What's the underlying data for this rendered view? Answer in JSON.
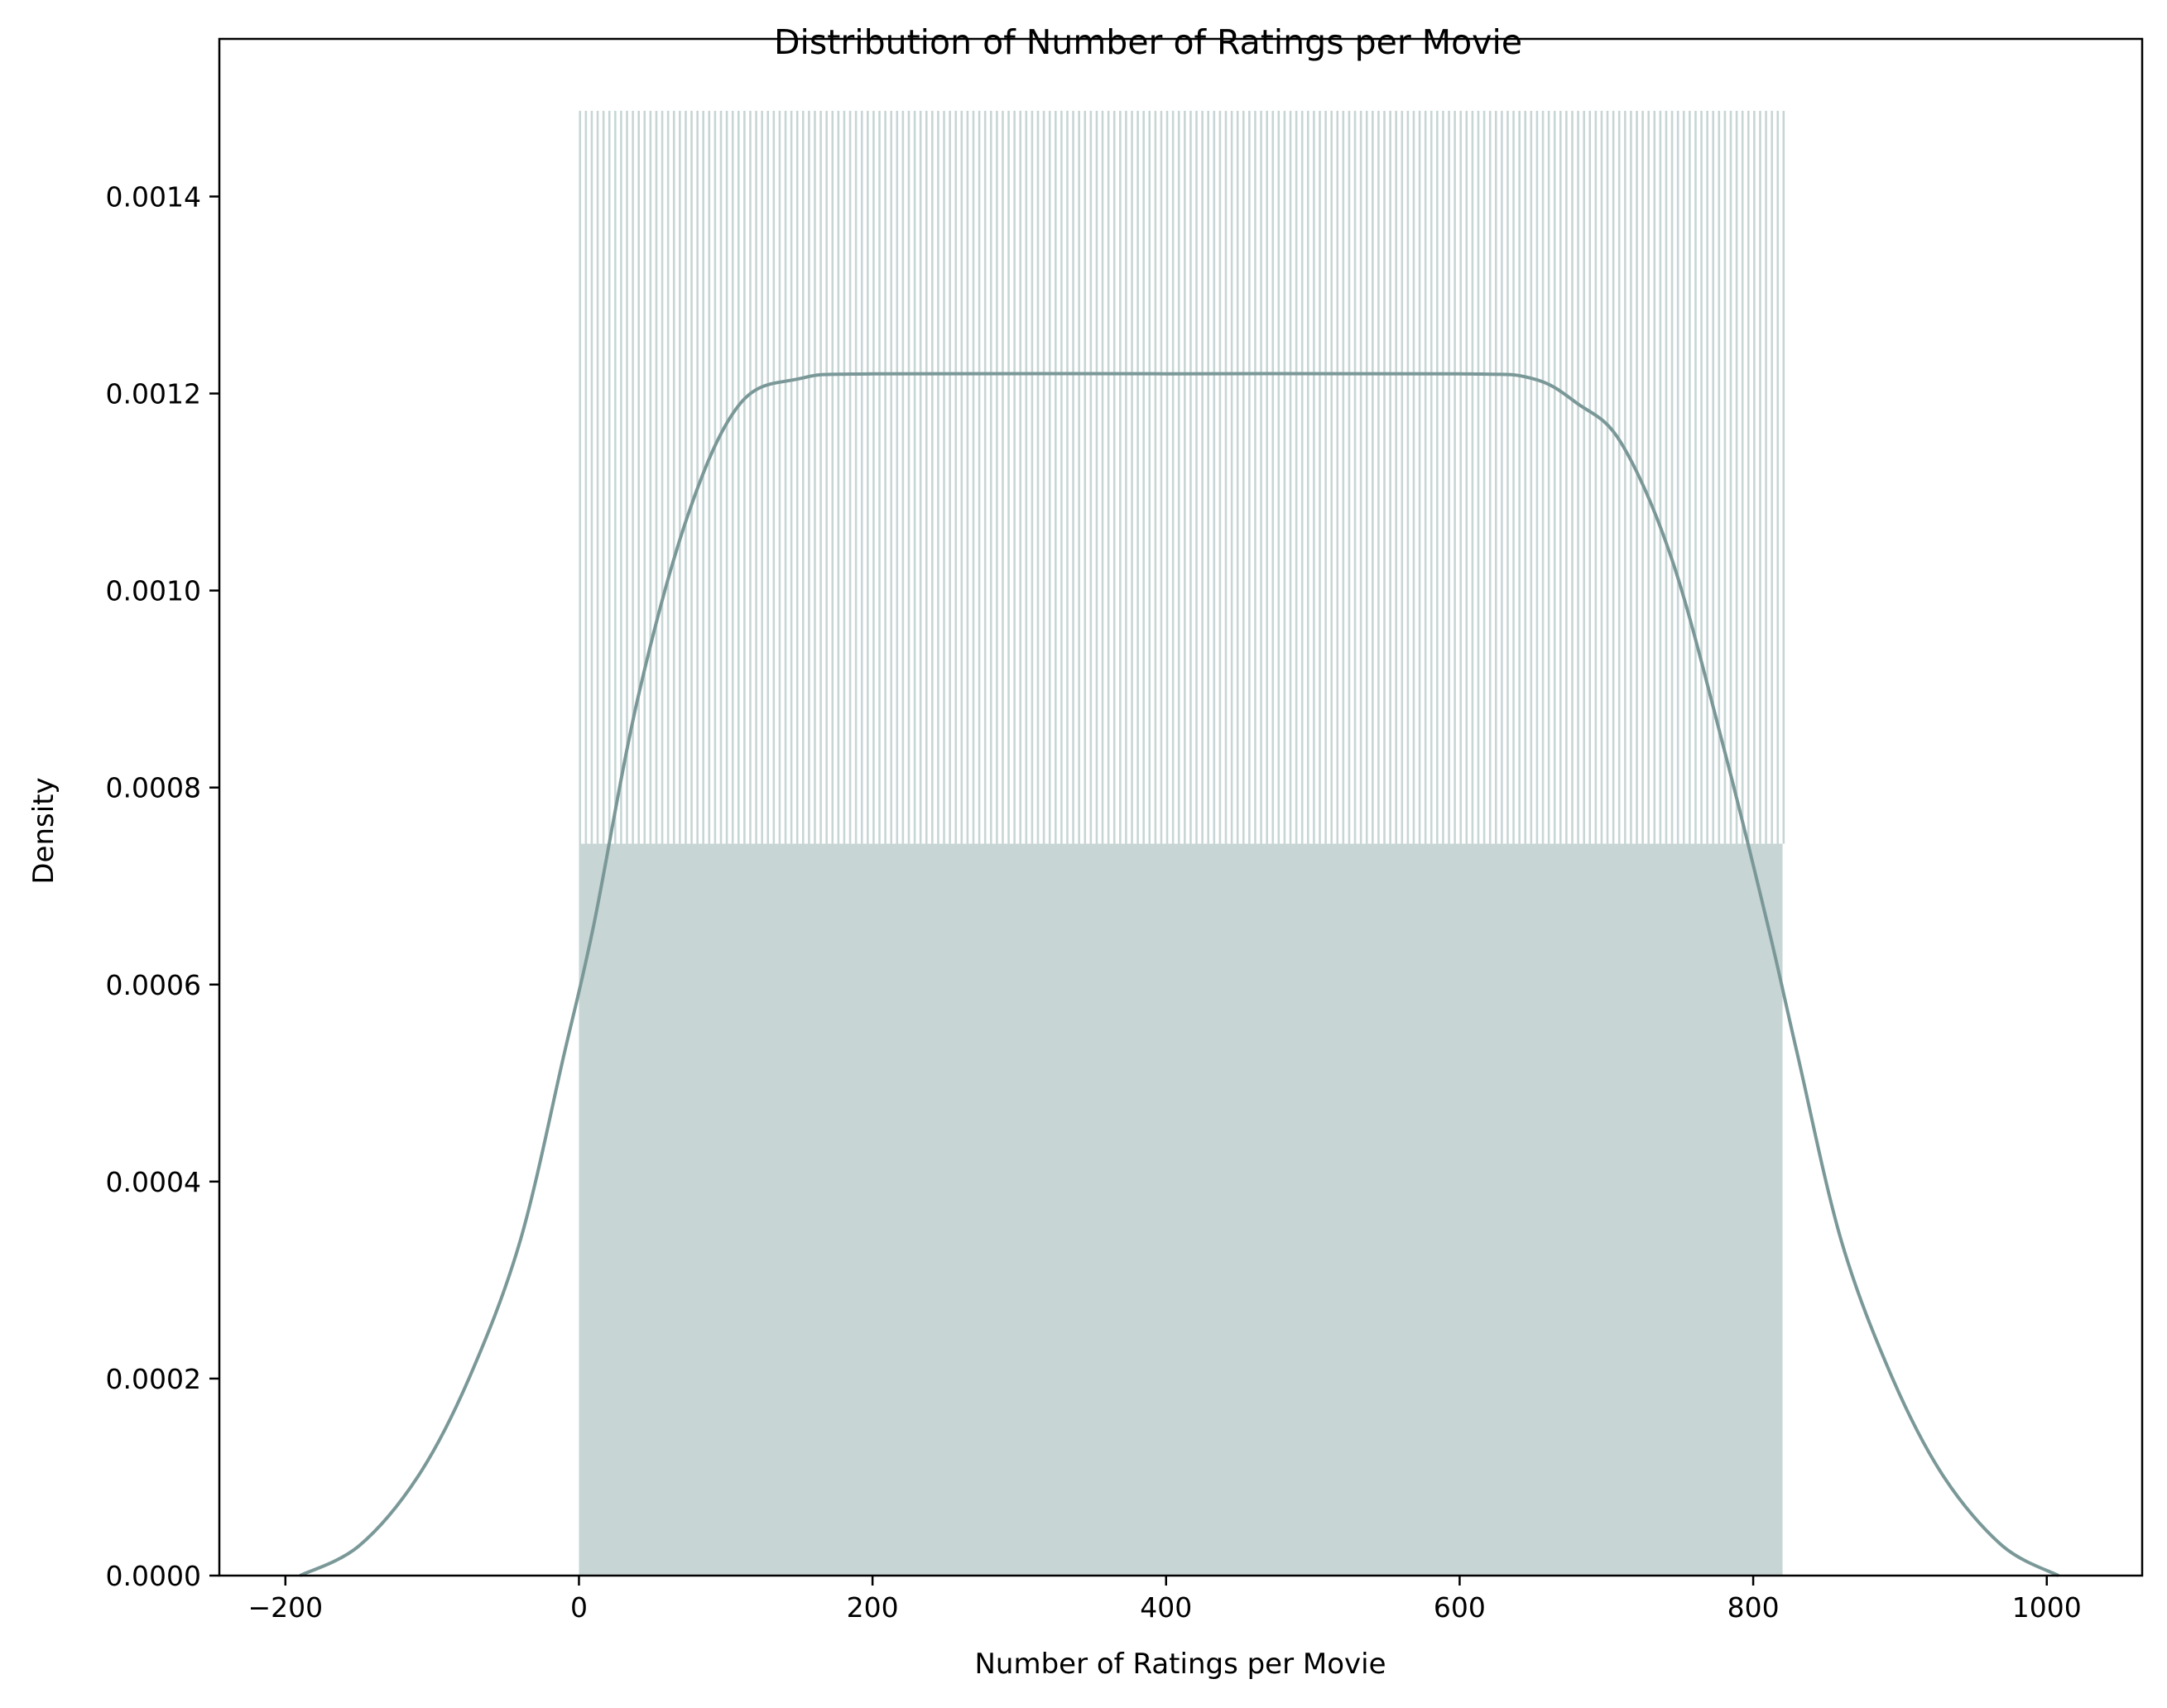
{
  "chart_data": {
    "type": "bar",
    "title": "Distribution of Number of Ratings per Movie",
    "xlabel": "Number of Ratings per Movie",
    "ylabel": "Density",
    "xlim": [
      -245,
      1065
    ],
    "ylim": [
      0,
      0.00156
    ],
    "x_ticks": [
      -200,
      0,
      200,
      400,
      600,
      800,
      1000
    ],
    "x_tick_labels": [
      "−200",
      "0",
      "200",
      "400",
      "600",
      "800",
      "1000"
    ],
    "y_ticks": [
      0,
      0.0002,
      0.0004,
      0.0006,
      0.0008,
      0.001,
      0.0012,
      0.0014
    ],
    "y_tick_labels": [
      "0.0000",
      "0.0002",
      "0.0004",
      "0.0006",
      "0.0008",
      "0.0010",
      "0.0012",
      "0.0014"
    ],
    "histogram": {
      "range": [
        0,
        820
      ],
      "bin_width": 1,
      "bin_count": 820,
      "density_pattern": "alternating; most bins at the lower level, regularly spaced bins at the upper level",
      "density_low": 0.000743,
      "density_high": 0.001487
    },
    "kde": {
      "x": [
        -190,
        -150,
        -110,
        -75,
        -40,
        -10,
        10,
        40,
        75,
        110,
        150,
        200,
        400,
        600,
        650,
        680,
        710,
        745,
        780,
        810,
        830,
        860,
        895,
        930,
        970,
        1008
      ],
      "y": [
        0.0,
        3e-05,
        0.0001,
        0.0002,
        0.00034,
        0.00053,
        0.00066,
        0.00089,
        0.00108,
        0.00119,
        0.001215,
        0.00122,
        0.00122,
        0.00122,
        0.001215,
        0.00119,
        0.00115,
        0.00103,
        0.00084,
        0.00066,
        0.00053,
        0.00034,
        0.0002,
        0.0001,
        3e-05,
        0.0
      ]
    },
    "colors": {
      "bars": "#c8d5d5",
      "kde_line": "#7b9898",
      "axes": "#000000"
    },
    "grid": false
  }
}
